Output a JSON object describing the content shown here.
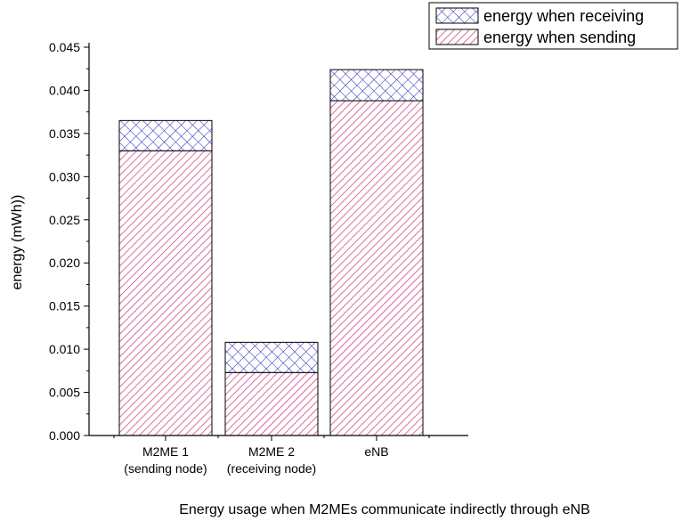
{
  "chart_data": {
    "type": "bar",
    "stacked": true,
    "categories": [
      [
        "M2ME 1",
        "(sending node)"
      ],
      [
        "M2ME 2",
        "(receiving node)"
      ],
      [
        "eNB"
      ]
    ],
    "series": [
      {
        "name": "energy when sending",
        "values": [
          0.033,
          0.0073,
          0.0388
        ],
        "color": "#cc3377",
        "pattern": "diagonal-hatch"
      },
      {
        "name": "energy when receiving",
        "values": [
          0.0035,
          0.0035,
          0.0036
        ],
        "color": "#2222bb",
        "pattern": "cross-hatch"
      }
    ],
    "legend_order": [
      1,
      0
    ],
    "xlabel": "Energy usage when M2MEs communicate indirectly through eNB",
    "ylabel": "energy (mWh))",
    "ylim": [
      0,
      0.045
    ],
    "yticks": [
      "0.000",
      "0.005",
      "0.010",
      "0.015",
      "0.020",
      "0.025",
      "0.030",
      "0.035",
      "0.040",
      "0.045"
    ],
    "grid": false,
    "legend_position": "top-right"
  }
}
